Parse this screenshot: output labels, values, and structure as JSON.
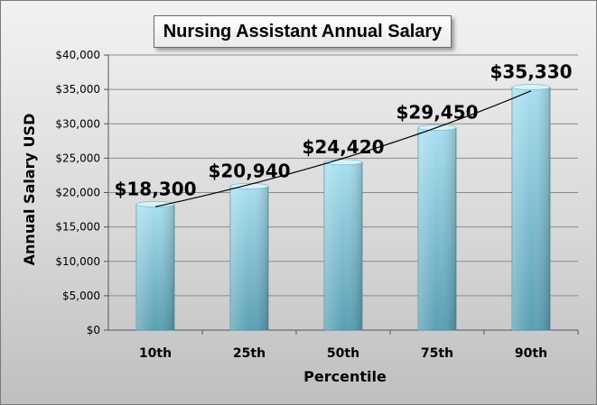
{
  "chart_data": {
    "type": "bar",
    "title": "Nursing Assistant Annual Salary",
    "xlabel": "Percentile",
    "ylabel": "Annual Salary USD",
    "categories": [
      "10th",
      "25th",
      "50th",
      "75th",
      "90th"
    ],
    "values": [
      18300,
      20940,
      24420,
      29450,
      35330
    ],
    "data_labels": [
      "$18,300",
      "$20,940",
      "$24,420",
      "$29,450",
      "$35,330"
    ],
    "ylim": [
      0,
      40000
    ],
    "yticks": [
      0,
      5000,
      10000,
      15000,
      20000,
      25000,
      30000,
      35000,
      40000
    ],
    "ytick_labels": [
      "$0",
      "$5,000",
      "$10,000",
      "$15,000",
      "$20,000",
      "$25,000",
      "$30,000",
      "$35,000",
      "$40,000"
    ],
    "grid": true,
    "trendline": true,
    "legend": "none",
    "colors": {
      "bar_top": "#a8dff0",
      "bar_bottom": "#5a9fb3",
      "grid": "#8c8c8c",
      "trendline": "#000000"
    }
  }
}
